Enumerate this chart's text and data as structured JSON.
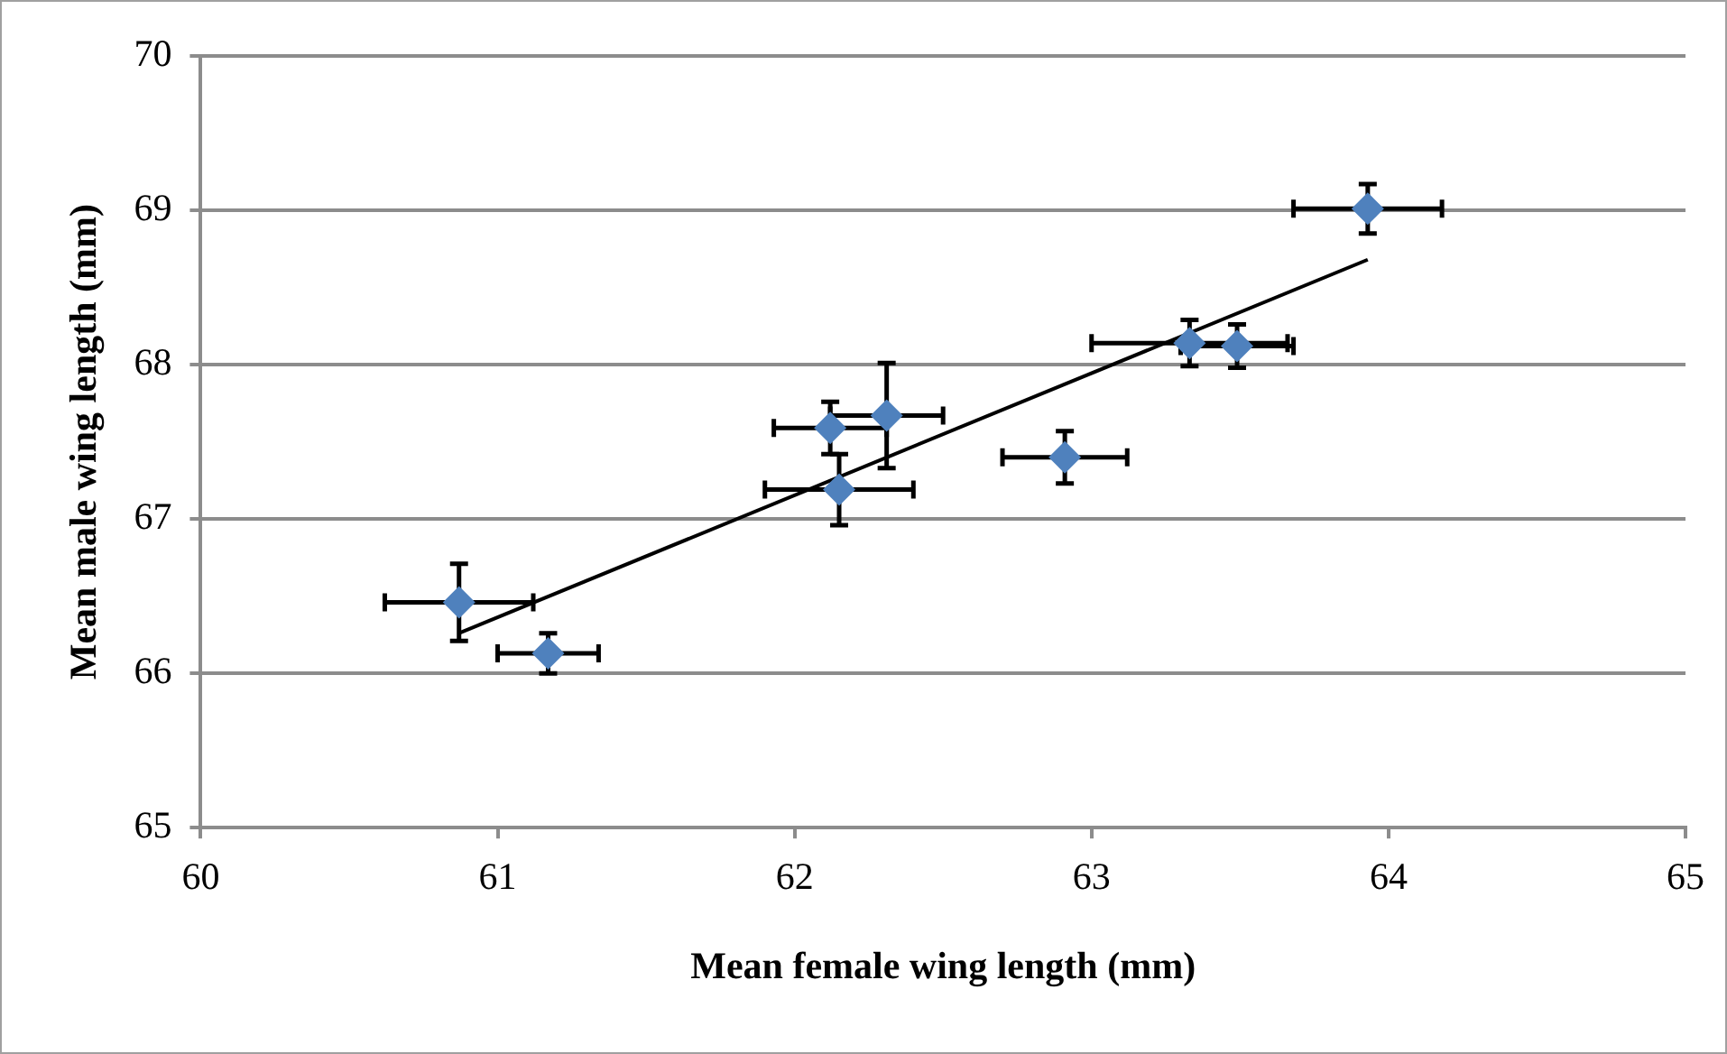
{
  "chart_data": {
    "type": "scatter",
    "xlabel": "Mean female wing length (mm)",
    "ylabel": "Mean male wing length (mm)",
    "xlim": [
      60,
      65
    ],
    "xticks": [
      60,
      61,
      62,
      63,
      64,
      65
    ],
    "ylim": [
      65,
      70
    ],
    "yticks": [
      65,
      66,
      67,
      68,
      69,
      70
    ],
    "grid": "y",
    "legend": false,
    "marker": "diamond",
    "series": [
      {
        "color": "#4f81bd",
        "x": [
          60.87,
          61.17,
          62.12,
          62.15,
          62.31,
          62.91,
          63.33,
          63.49,
          63.93
        ],
        "values": [
          66.46,
          66.13,
          67.59,
          67.19,
          67.67,
          67.4,
          68.14,
          68.12,
          69.01
        ],
        "errors": [
          0.25,
          0.13,
          0.17,
          0.23,
          0.34,
          0.17,
          0.15,
          0.14,
          0.16
        ],
        "xerrors": [
          0.25,
          0.17,
          0.19,
          0.25,
          0.19,
          0.21,
          0.33,
          0.19,
          0.25
        ]
      },
      {
        "type": "line",
        "color": "#000000",
        "x": [
          60.87,
          63.93
        ],
        "values": [
          66.26,
          68.68
        ],
        "marker": "none",
        "line_style": "solid"
      }
    ]
  }
}
